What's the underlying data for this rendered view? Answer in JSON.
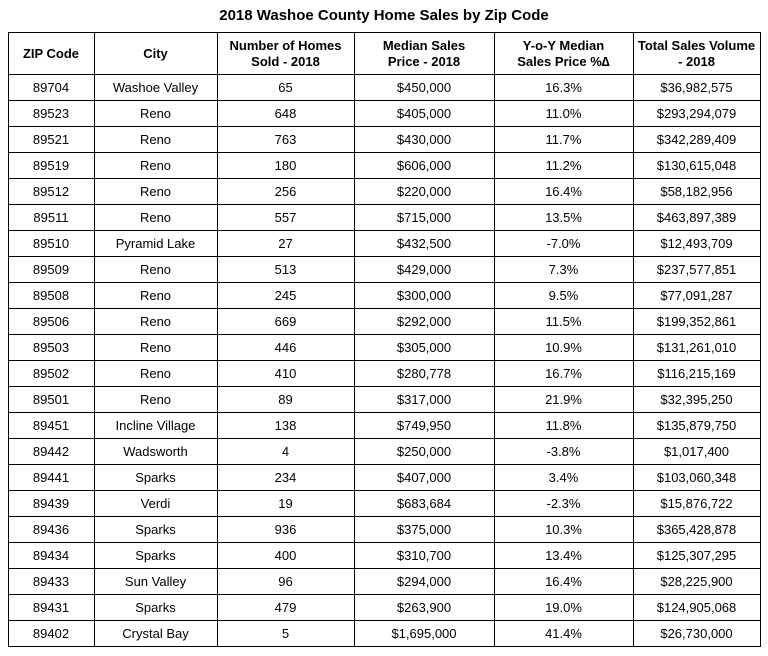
{
  "page_title": "2018 Washoe County Home Sales by Zip Code",
  "chart_data": {
    "type": "table",
    "title": "2018 Washoe County Home Sales by Zip Code",
    "columns": [
      "ZIP Code",
      "City",
      "Number of Homes Sold - 2018",
      "Median Sales Price - 2018",
      "Y-o-Y Median Sales Price %∆",
      "Total Sales Volume - 2018"
    ],
    "headers": [
      {
        "lines": [
          "ZIP Code"
        ]
      },
      {
        "lines": [
          "City"
        ]
      },
      {
        "lines": [
          "Number of Homes",
          "Sold - 2018"
        ]
      },
      {
        "lines": [
          "Median Sales",
          "Price - 2018"
        ]
      },
      {
        "lines": [
          "Y-o-Y Median",
          "Sales Price  %∆"
        ]
      },
      {
        "lines": [
          "Total Sales Volume",
          "- 2018"
        ]
      }
    ],
    "rows": [
      [
        "89704",
        "Washoe Valley",
        "65",
        "$450,000",
        "16.3%",
        "$36,982,575"
      ],
      [
        "89523",
        "Reno",
        "648",
        "$405,000",
        "11.0%",
        "$293,294,079"
      ],
      [
        "89521",
        "Reno",
        "763",
        "$430,000",
        "11.7%",
        "$342,289,409"
      ],
      [
        "89519",
        "Reno",
        "180",
        "$606,000",
        "11.2%",
        "$130,615,048"
      ],
      [
        "89512",
        "Reno",
        "256",
        "$220,000",
        "16.4%",
        "$58,182,956"
      ],
      [
        "89511",
        "Reno",
        "557",
        "$715,000",
        "13.5%",
        "$463,897,389"
      ],
      [
        "89510",
        "Pyramid Lake",
        "27",
        "$432,500",
        "-7.0%",
        "$12,493,709"
      ],
      [
        "89509",
        "Reno",
        "513",
        "$429,000",
        "7.3%",
        "$237,577,851"
      ],
      [
        "89508",
        "Reno",
        "245",
        "$300,000",
        "9.5%",
        "$77,091,287"
      ],
      [
        "89506",
        "Reno",
        "669",
        "$292,000",
        "11.5%",
        "$199,352,861"
      ],
      [
        "89503",
        "Reno",
        "446",
        "$305,000",
        "10.9%",
        "$131,261,010"
      ],
      [
        "89502",
        "Reno",
        "410",
        "$280,778",
        "16.7%",
        "$116,215,169"
      ],
      [
        "89501",
        "Reno",
        "89",
        "$317,000",
        "21.9%",
        "$32,395,250"
      ],
      [
        "89451",
        "Incline Village",
        "138",
        "$749,950",
        "11.8%",
        "$135,879,750"
      ],
      [
        "89442",
        "Wadsworth",
        "4",
        "$250,000",
        "-3.8%",
        "$1,017,400"
      ],
      [
        "89441",
        "Sparks",
        "234",
        "$407,000",
        "3.4%",
        "$103,060,348"
      ],
      [
        "89439",
        "Verdi",
        "19",
        "$683,684",
        "-2.3%",
        "$15,876,722"
      ],
      [
        "89436",
        "Sparks",
        "936",
        "$375,000",
        "10.3%",
        "$365,428,878"
      ],
      [
        "89434",
        "Sparks",
        "400",
        "$310,700",
        "13.4%",
        "$125,307,295"
      ],
      [
        "89433",
        "Sun Valley",
        "96",
        "$294,000",
        "16.4%",
        "$28,225,900"
      ],
      [
        "89431",
        "Sparks",
        "479",
        "$263,900",
        "19.0%",
        "$124,905,068"
      ],
      [
        "89402",
        "Crystal Bay",
        "5",
        "$1,695,000",
        "41.4%",
        "$26,730,000"
      ]
    ],
    "text_color": "#000000",
    "border_color": "#000000",
    "background_color": "#ffffff"
  }
}
